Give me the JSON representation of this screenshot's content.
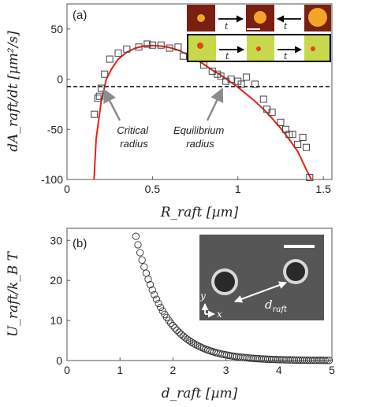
{
  "chart_data": [
    {
      "panel": "(a)",
      "type": "scatter",
      "xlabel": "R_raft [µm]",
      "ylabel": "dA_raft/dt [µm²/s]",
      "xlim": [
        0,
        1.55
      ],
      "ylim": [
        -100,
        75
      ],
      "xticks": [
        0,
        0.5,
        1,
        1.5
      ],
      "yticks": [
        -100,
        -50,
        0,
        50
      ],
      "x_tick_labels": [
        "0",
        "0.5",
        "1",
        "1.5"
      ],
      "y_tick_labels": [
        "-100",
        "-50",
        "0",
        "50"
      ],
      "grid": false,
      "series": [
        {
          "type": "scatter",
          "marker": "open-square",
          "points": [
            [
              0.16,
              -35
            ],
            [
              0.18,
              -19
            ],
            [
              0.19,
              -17
            ],
            [
              0.2,
              -9
            ],
            [
              0.22,
              5
            ],
            [
              0.25,
              20
            ],
            [
              0.3,
              26
            ],
            [
              0.35,
              30
            ],
            [
              0.42,
              32
            ],
            [
              0.47,
              35
            ],
            [
              0.5,
              34
            ],
            [
              0.55,
              34
            ],
            [
              0.6,
              31
            ],
            [
              0.65,
              32
            ],
            [
              0.68,
              23
            ],
            [
              0.72,
              22
            ],
            [
              0.75,
              21
            ],
            [
              0.8,
              14
            ],
            [
              0.85,
              8
            ],
            [
              0.88,
              5
            ],
            [
              0.9,
              3
            ],
            [
              0.93,
              -2
            ],
            [
              0.96,
              0
            ],
            [
              1.0,
              -2
            ],
            [
              1.02,
              -5
            ],
            [
              1.05,
              2
            ],
            [
              1.1,
              -5
            ],
            [
              1.15,
              -20
            ],
            [
              1.17,
              -30
            ],
            [
              1.2,
              -33
            ],
            [
              1.25,
              -43
            ],
            [
              1.28,
              -50
            ],
            [
              1.3,
              -55
            ],
            [
              1.32,
              -55
            ],
            [
              1.35,
              -65
            ],
            [
              1.38,
              -58
            ],
            [
              1.4,
              -68
            ],
            [
              1.42,
              -98
            ]
          ]
        },
        {
          "type": "line",
          "color": "#e8201a",
          "note_fit_points": [
            [
              0.158,
              -100
            ],
            [
              0.17,
              -60
            ],
            [
              0.2,
              -22
            ],
            [
              0.23,
              0
            ],
            [
              0.26,
              10
            ],
            [
              0.3,
              20
            ],
            [
              0.35,
              27
            ],
            [
              0.4,
              31
            ],
            [
              0.45,
              33
            ],
            [
              0.5,
              33.5
            ],
            [
              0.55,
              33
            ],
            [
              0.6,
              31.5
            ],
            [
              0.65,
              29
            ],
            [
              0.7,
              25
            ],
            [
              0.75,
              20
            ],
            [
              0.8,
              15
            ],
            [
              0.85,
              9
            ],
            [
              0.9,
              4
            ],
            [
              0.95,
              -2
            ],
            [
              1.0,
              -8
            ],
            [
              1.05,
              -15
            ],
            [
              1.1,
              -22
            ],
            [
              1.15,
              -30
            ],
            [
              1.2,
              -39
            ],
            [
              1.25,
              -49
            ],
            [
              1.3,
              -60
            ],
            [
              1.35,
              -72
            ],
            [
              1.4,
              -90
            ],
            [
              1.43,
              -100
            ]
          ]
        }
      ],
      "reference_line": {
        "y": 0,
        "style": "dashed",
        "color": "#000000"
      },
      "annotations": [
        {
          "lines": [
            "Critical",
            "radius"
          ],
          "target": [
            0.22,
            0
          ]
        },
        {
          "lines": [
            "Equilibrium",
            "radius"
          ],
          "target": [
            0.93,
            0
          ]
        }
      ],
      "inset_colors": {
        "row1_bg": "#7a1f12",
        "row1_bead": "#f3a52a",
        "row2_bg": "#c7d94a",
        "row2_dot": "#e8411c",
        "row2_border": "#000000"
      },
      "inset_labels": [
        "t",
        "t",
        "t",
        "t"
      ]
    },
    {
      "panel": "(b)",
      "type": "scatter",
      "xlabel": "d_raft [µm]",
      "ylabel": "U_raft/k_B T",
      "xlim": [
        0,
        5
      ],
      "ylim": [
        0,
        33
      ],
      "xticks": [
        0,
        1,
        2,
        3,
        4,
        5
      ],
      "yticks": [
        0,
        10,
        20,
        30
      ],
      "x_tick_labels": [
        "0",
        "1",
        "2",
        "3",
        "4",
        "5"
      ],
      "y_tick_labels": [
        "0",
        "10",
        "20",
        "30"
      ],
      "grid": false,
      "series": [
        {
          "type": "scatter",
          "marker": "open-circle",
          "model": {
            "form": "A*exp(-(x-x0)/tau)",
            "A": 31,
            "x0": 1.3,
            "tau": 0.55,
            "x_from": 1.3,
            "x_to": 4.95,
            "n_points": 95
          }
        }
      ],
      "inset_labels": {
        "axis_y": "y",
        "axis_x": "x",
        "distance": "d",
        "distance_sub": "raft"
      },
      "inset_colors": {
        "background": "#5c5c5c"
      }
    }
  ]
}
